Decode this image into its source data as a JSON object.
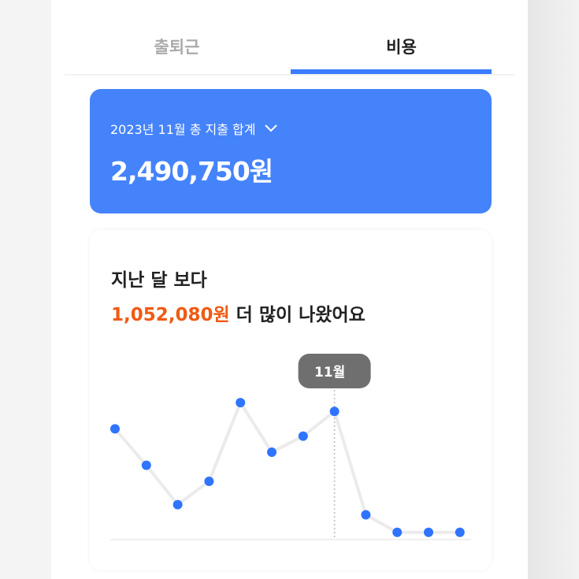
{
  "tabs": [
    {
      "label": "출퇴근",
      "active": false
    },
    {
      "label": "비용",
      "active": true
    }
  ],
  "summary": {
    "label": "2023년 11월 총 지출 합계",
    "amount": "2,490,750원",
    "icon": "chevron-down-icon"
  },
  "comparison": {
    "line1": "지난 달 보다",
    "diff": "1,052,080원",
    "line2_suffix": " 더 많이 나왔어요"
  },
  "colors": {
    "accent": "#4583fb",
    "dot": "#2f74ff",
    "diff": "#f05a14",
    "tooltip": "#6f6f6f"
  },
  "chart_data": {
    "type": "line",
    "tooltip_label": "11월",
    "selected_index": 7,
    "values": [
      76,
      51,
      24,
      40,
      94,
      60,
      71,
      88,
      17,
      5,
      5,
      5
    ],
    "ylim": [
      0,
      100
    ],
    "grid": false
  }
}
